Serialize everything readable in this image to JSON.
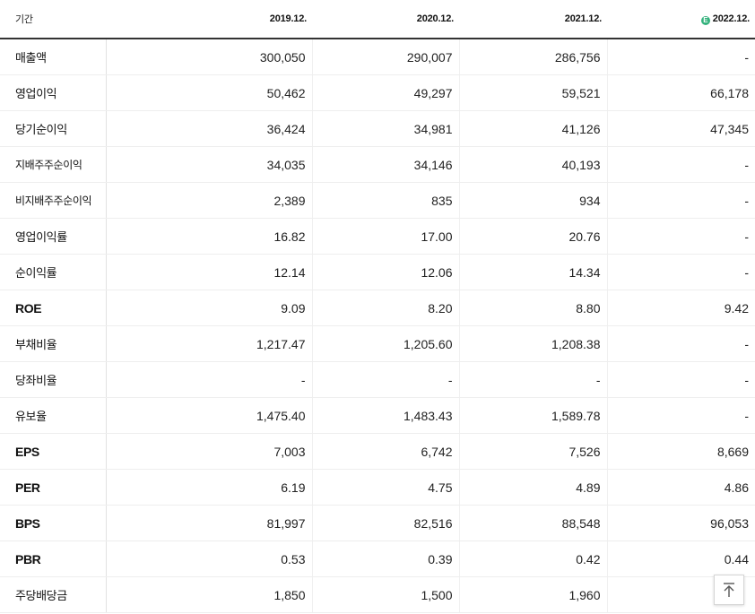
{
  "header": {
    "label": "기간",
    "periods": [
      "2019.12.",
      "2020.12.",
      "2021.12.",
      "2022.12."
    ],
    "estimate_badge": "E",
    "estimate_color": "#34b27d"
  },
  "rows": [
    {
      "label": "매출액",
      "values": [
        "300,050",
        "290,007",
        "286,756",
        "-"
      ]
    },
    {
      "label": "영업이익",
      "values": [
        "50,462",
        "49,297",
        "59,521",
        "66,178"
      ]
    },
    {
      "label": "당기순이익",
      "values": [
        "36,424",
        "34,981",
        "41,126",
        "47,345"
      ]
    },
    {
      "label": "지배주주순이익",
      "values": [
        "34,035",
        "34,146",
        "40,193",
        "-"
      ]
    },
    {
      "label": "비지배주주순이익",
      "values": [
        "2,389",
        "835",
        "934",
        "-"
      ]
    },
    {
      "label": "영업이익률",
      "values": [
        "16.82",
        "17.00",
        "20.76",
        "-"
      ]
    },
    {
      "label": "순이익률",
      "values": [
        "12.14",
        "12.06",
        "14.34",
        "-"
      ]
    },
    {
      "label": "ROE",
      "values": [
        "9.09",
        "8.20",
        "8.80",
        "9.42"
      ]
    },
    {
      "label": "부채비율",
      "values": [
        "1,217.47",
        "1,205.60",
        "1,208.38",
        "-"
      ]
    },
    {
      "label": "당좌비율",
      "values": [
        "-",
        "-",
        "-",
        "-"
      ]
    },
    {
      "label": "유보율",
      "values": [
        "1,475.40",
        "1,483.43",
        "1,589.78",
        "-"
      ]
    },
    {
      "label": "EPS",
      "values": [
        "7,003",
        "6,742",
        "7,526",
        "8,669"
      ]
    },
    {
      "label": "PER",
      "values": [
        "6.19",
        "4.75",
        "4.89",
        "4.86"
      ]
    },
    {
      "label": "BPS",
      "values": [
        "81,997",
        "82,516",
        "88,548",
        "96,053"
      ]
    },
    {
      "label": "PBR",
      "values": [
        "0.53",
        "0.39",
        "0.42",
        "0.44"
      ]
    },
    {
      "label": "주당배당금",
      "values": [
        "1,850",
        "1,500",
        "1,960",
        ""
      ]
    }
  ],
  "scroll_top_icon": "arrow-up-to-top-icon"
}
